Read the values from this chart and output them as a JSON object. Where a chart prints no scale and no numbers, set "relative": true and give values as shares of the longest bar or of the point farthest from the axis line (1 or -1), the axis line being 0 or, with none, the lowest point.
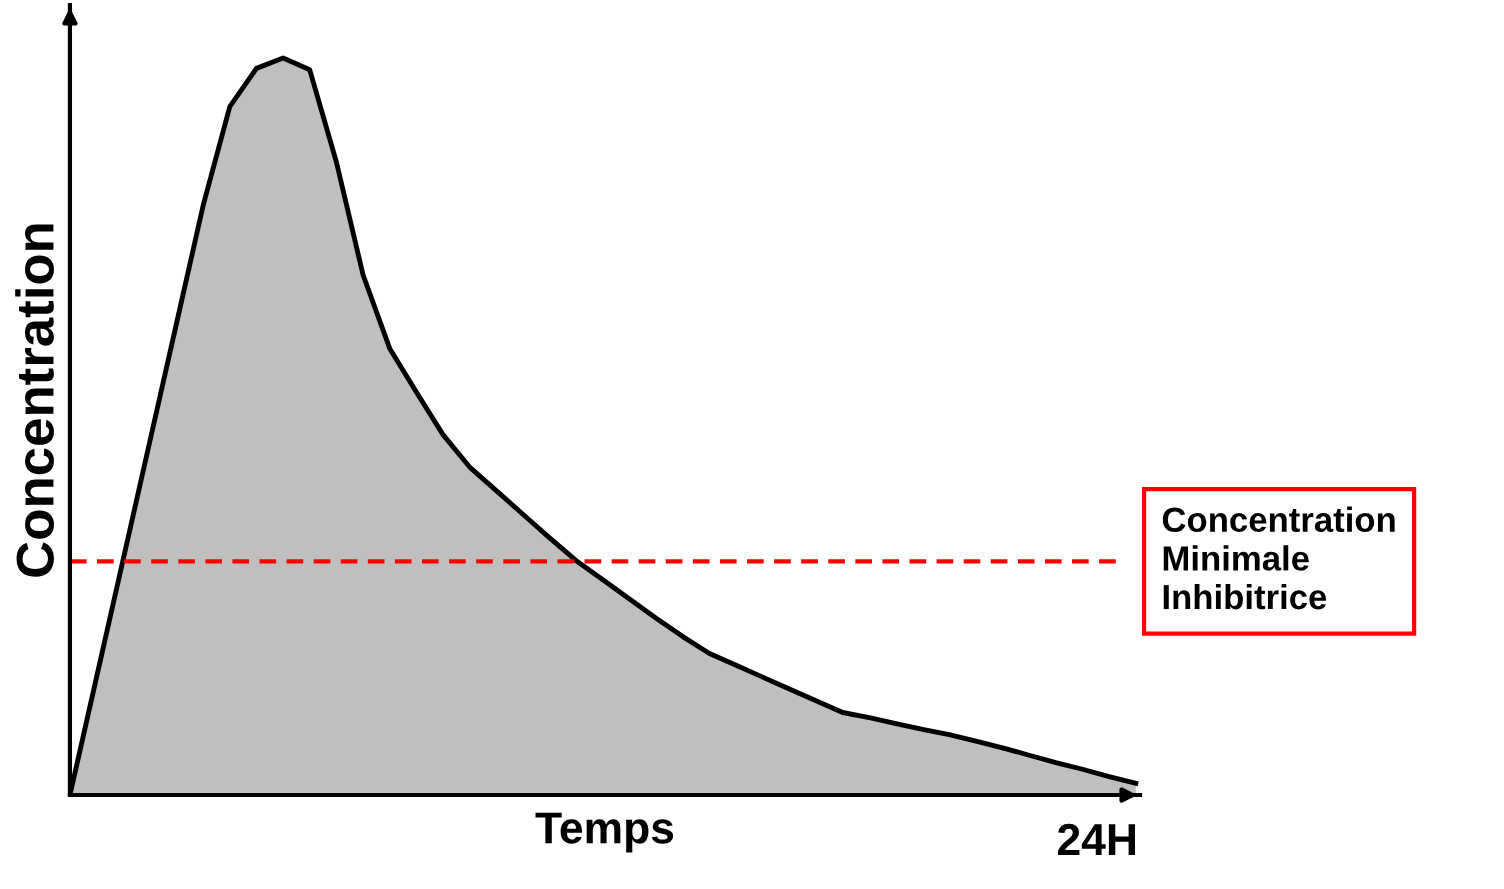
{
  "chart_data": {
    "type": "area",
    "relative": true,
    "xlabel": "Temps",
    "ylabel": "Concentration",
    "categories": [
      null,
      null,
      null,
      null,
      null,
      null,
      null,
      null,
      null,
      null,
      null,
      null,
      null,
      null,
      null,
      null,
      null,
      null,
      null,
      null,
      null,
      null,
      null,
      null,
      null,
      null,
      null,
      null,
      null,
      null,
      null,
      null,
      null,
      null,
      null,
      null,
      null,
      null,
      null,
      null,
      null
    ],
    "annotations": [
      "24H"
    ],
    "series": [
      {
        "color": "#bfbfbf",
        "values": [
          0,
          0.16,
          0.32,
          0.48,
          0.64,
          0.8,
          0.934,
          0.986,
          1,
          0.984,
          0.859,
          0.706,
          0.606,
          0.547,
          0.489,
          0.445,
          0.413,
          0.381,
          0.349,
          0.318,
          0.292,
          0.266,
          0.24,
          0.215,
          0.192,
          0.176,
          0.16,
          0.144,
          0.128,
          0.112,
          0.105,
          0.097,
          0.089,
          0.082,
          0.073,
          0.064,
          0.054,
          0.044,
          0.035,
          0.025,
          0.016
        ]
      }
    ],
    "ref_lines": [
      {
        "axis": "y",
        "value": 0.317,
        "label": "Concentration\nMinimale\nInhibitrice",
        "color": "#ff0000",
        "line_style": "dashed"
      }
    ]
  }
}
